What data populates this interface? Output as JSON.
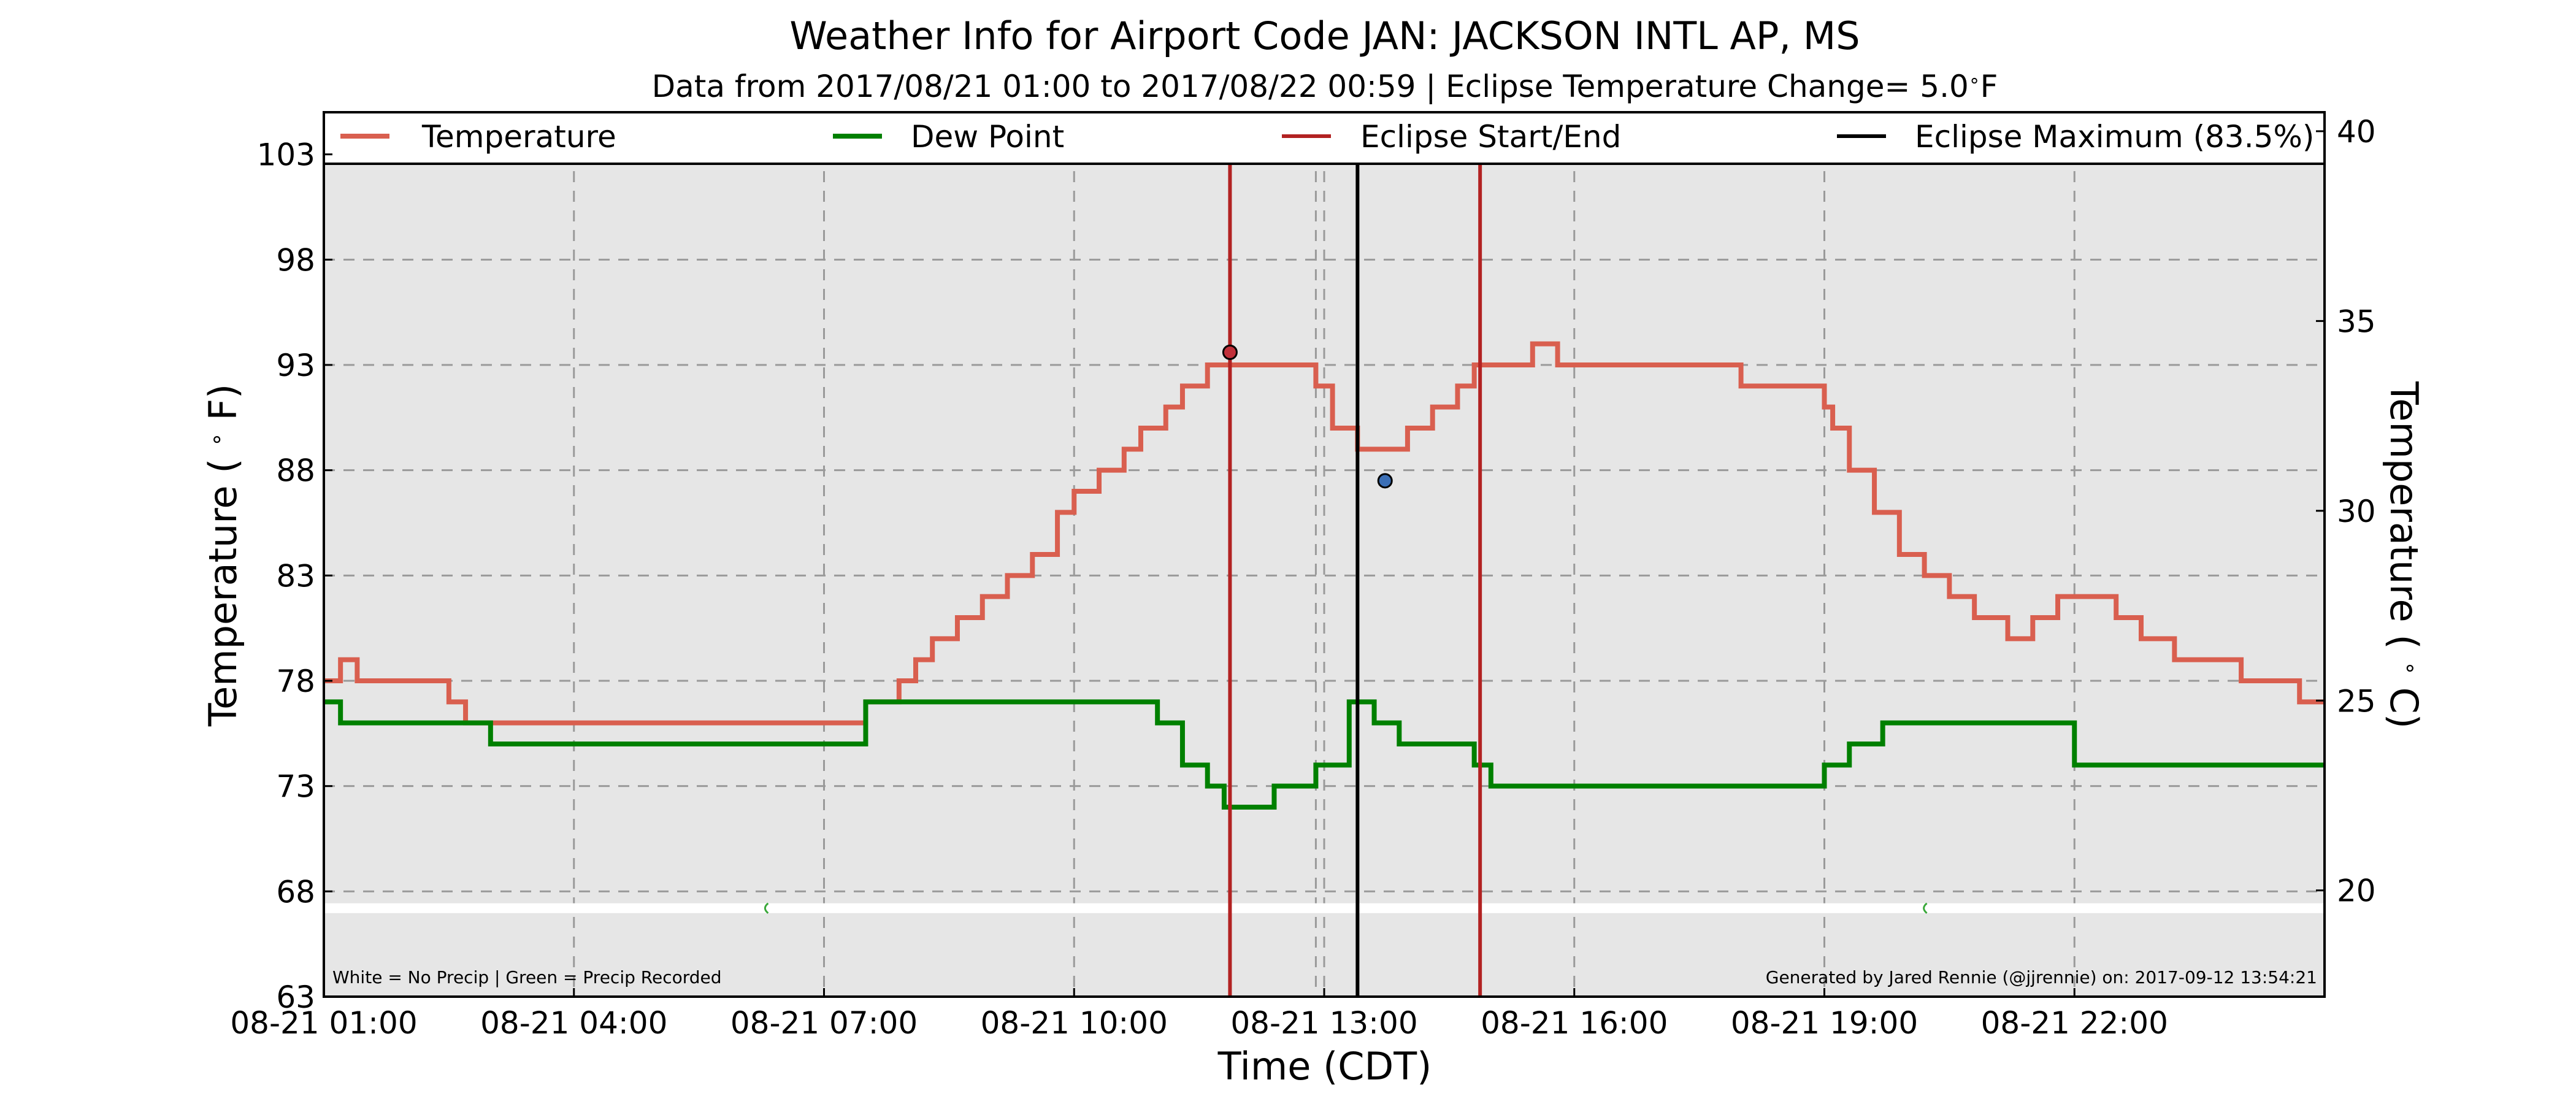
{
  "chart_data": {
    "type": "line",
    "title": "Weather Info for Airport Code JAN: JACKSON INTL AP, MS",
    "subtitle": "Data from 2017/08/21 01:00 to 2017/08/22 00:59 | Eclipse Temperature Change= 5.0$^\\circ$F",
    "subtitle_parts": [
      "Data from 2017/08/21 01:00 to 2017/08/22 00:59 | Eclipse Temperature Change= 5.0",
      "∘",
      "F"
    ],
    "xlabel": "Time (CDT)",
    "ylabel_parts": [
      "Temperature ( ",
      "∘",
      " F)"
    ],
    "ylabel2_parts": [
      "Temperature ( ",
      "∘",
      " C)"
    ],
    "xlim": [
      1.0,
      25.0
    ],
    "ylim": [
      63,
      105
    ],
    "ylim2_c": [
      17.2,
      40.5
    ],
    "grid": true,
    "legend_position": "top",
    "x_ticks": [
      {
        "x": 1,
        "label": "08-21 01:00"
      },
      {
        "x": 4,
        "label": "08-21 04:00"
      },
      {
        "x": 7,
        "label": "08-21 07:00"
      },
      {
        "x": 10,
        "label": "08-21 10:00"
      },
      {
        "x": 13,
        "label": "08-21 13:00"
      },
      {
        "x": 16,
        "label": "08-21 16:00"
      },
      {
        "x": 19,
        "label": "08-21 19:00"
      },
      {
        "x": 22,
        "label": "08-21 22:00"
      }
    ],
    "x_grid": [
      1,
      4,
      7,
      10,
      12.9,
      13,
      16,
      19,
      22
    ],
    "y_ticks": [
      63,
      68,
      73,
      78,
      83,
      88,
      93,
      98,
      103
    ],
    "y2_ticks": [
      20,
      25,
      30,
      35,
      40
    ],
    "series": [
      {
        "name": "Temperature",
        "color": "#d95f4f",
        "x": [
          1.0,
          1.2,
          1.4,
          1.5,
          2.0,
          2.5,
          2.7,
          3.2,
          3.7,
          4.0,
          4.5,
          5.0,
          5.5,
          5.9,
          6.3,
          6.8,
          7.0,
          7.5,
          7.9,
          8.1,
          8.3,
          8.6,
          8.9,
          9.2,
          9.5,
          9.8,
          10.0,
          10.3,
          10.6,
          10.8,
          11.1,
          11.3,
          11.6,
          11.8,
          12.1,
          12.5,
          12.9,
          13.1,
          13.4,
          13.7,
          14.0,
          14.3,
          14.6,
          14.8,
          15.0,
          15.3,
          15.5,
          15.8,
          16.1,
          16.5,
          17.0,
          17.5,
          18.0,
          18.5,
          19.0,
          19.1,
          19.3,
          19.6,
          19.9,
          20.2,
          20.5,
          20.8,
          21.2,
          21.5,
          21.8,
          22.2,
          22.5,
          22.8,
          23.2,
          23.6,
          24.0,
          24.4,
          24.7,
          25.0
        ],
        "values": [
          78,
          79,
          78,
          78,
          78,
          77,
          76,
          76,
          76,
          76,
          76,
          76,
          76,
          76,
          76,
          76,
          76,
          77,
          78,
          79,
          80,
          81,
          82,
          83,
          84,
          86,
          87,
          88,
          89,
          90,
          91,
          92,
          93,
          93,
          93,
          93,
          92,
          90,
          89,
          89,
          90,
          91,
          92,
          93,
          93,
          93,
          94,
          93,
          93,
          93,
          93,
          93,
          92,
          92,
          91,
          90,
          88,
          86,
          84,
          83,
          82,
          81,
          80,
          81,
          82,
          82,
          81,
          80,
          79,
          79,
          78,
          78,
          77,
          77
        ]
      },
      {
        "name": "Dew Point",
        "color": "#008000",
        "x": [
          1.0,
          1.2,
          1.5,
          2.0,
          2.5,
          3.0,
          3.5,
          4.0,
          4.5,
          5.0,
          5.5,
          6.0,
          6.5,
          7.0,
          7.5,
          8.0,
          8.5,
          9.0,
          9.5,
          10.0,
          10.5,
          11.0,
          11.3,
          11.6,
          11.8,
          12.1,
          12.4,
          12.7,
          12.9,
          13.1,
          13.3,
          13.6,
          13.9,
          14.2,
          14.5,
          14.8,
          15.0,
          15.3,
          15.6,
          16.0,
          16.5,
          17.0,
          17.5,
          18.0,
          18.5,
          18.8,
          19.0,
          19.3,
          19.7,
          20.0,
          20.5,
          21.0,
          21.5,
          21.9,
          22.0,
          22.5,
          23.0,
          23.5,
          24.0,
          24.5,
          25.0
        ],
        "values": [
          77,
          76,
          76,
          76,
          76,
          75,
          75,
          75,
          75,
          75,
          75,
          75,
          75,
          75,
          77,
          77,
          77,
          77,
          77,
          77,
          77,
          76,
          74,
          73,
          72,
          72,
          73,
          73,
          74,
          74,
          77,
          76,
          75,
          75,
          75,
          74,
          73,
          73,
          73,
          73,
          73,
          73,
          73,
          73,
          73,
          73,
          74,
          75,
          76,
          76,
          76,
          76,
          76,
          76,
          74,
          74,
          74,
          74,
          74,
          74,
          74
        ]
      }
    ],
    "markers": [
      {
        "name": "Eclipse Start/End",
        "color": "#b22222",
        "x": [
          11.87,
          14.87
        ]
      },
      {
        "name": "Eclipse Maximum (83.5%)",
        "color": "#000000",
        "x": [
          13.4
        ]
      }
    ],
    "points": [
      {
        "x": 11.87,
        "y": 93.6,
        "color": "#c0303a"
      },
      {
        "x": 13.73,
        "y": 87.5,
        "color": "#3b6fb6"
      }
    ],
    "precip_band": {
      "y": 67.2,
      "green_ticks_x": [
        6.3,
        20.2
      ]
    },
    "notes": {
      "left": "White = No Precip | Green = Precip Recorded",
      "right": "Generated by Jared Rennie (@jjrennie) on: 2017-09-12 13:54:21"
    }
  }
}
